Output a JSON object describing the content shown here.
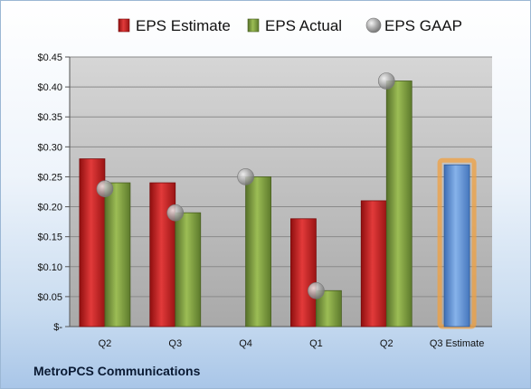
{
  "chart_data": {
    "type": "bar",
    "categories": [
      "Q2",
      "Q3",
      "Q4",
      "Q1",
      "Q2",
      "Q3 Estimate"
    ],
    "series": [
      {
        "name": "EPS Estimate",
        "kind": "bar",
        "color": "#cc2222",
        "values": [
          0.28,
          0.24,
          null,
          0.18,
          0.21,
          null
        ]
      },
      {
        "name": "EPS Actual",
        "kind": "bar",
        "color": "#7a9a3a",
        "values": [
          0.24,
          0.19,
          0.25,
          0.06,
          0.41,
          null
        ]
      },
      {
        "name": "EPS GAAP",
        "kind": "marker",
        "color": "#a0a0a0",
        "values": [
          0.23,
          0.19,
          0.25,
          0.06,
          0.41,
          null
        ]
      }
    ],
    "estimate_bar": {
      "category": "Q3 Estimate",
      "value": 0.27,
      "color": "#5b8fd6",
      "glow": "#f0a040"
    },
    "ylim": [
      0,
      0.45
    ],
    "y_ticks": [
      {
        "v": 0.45,
        "label": "$0.45"
      },
      {
        "v": 0.4,
        "label": "$0.40"
      },
      {
        "v": 0.35,
        "label": "$0.35"
      },
      {
        "v": 0.3,
        "label": "$0.30"
      },
      {
        "v": 0.25,
        "label": "$0.25"
      },
      {
        "v": 0.2,
        "label": "$0.20"
      },
      {
        "v": 0.15,
        "label": "$0.15"
      },
      {
        "v": 0.1,
        "label": "$0.10"
      },
      {
        "v": 0.05,
        "label": "$0.05"
      },
      {
        "v": 0,
        "label": "$-"
      }
    ],
    "grid": true,
    "legend_position": "top",
    "title": "",
    "xlabel": "",
    "ylabel": ""
  },
  "footer": {
    "company": "MetroPCS Communications"
  }
}
